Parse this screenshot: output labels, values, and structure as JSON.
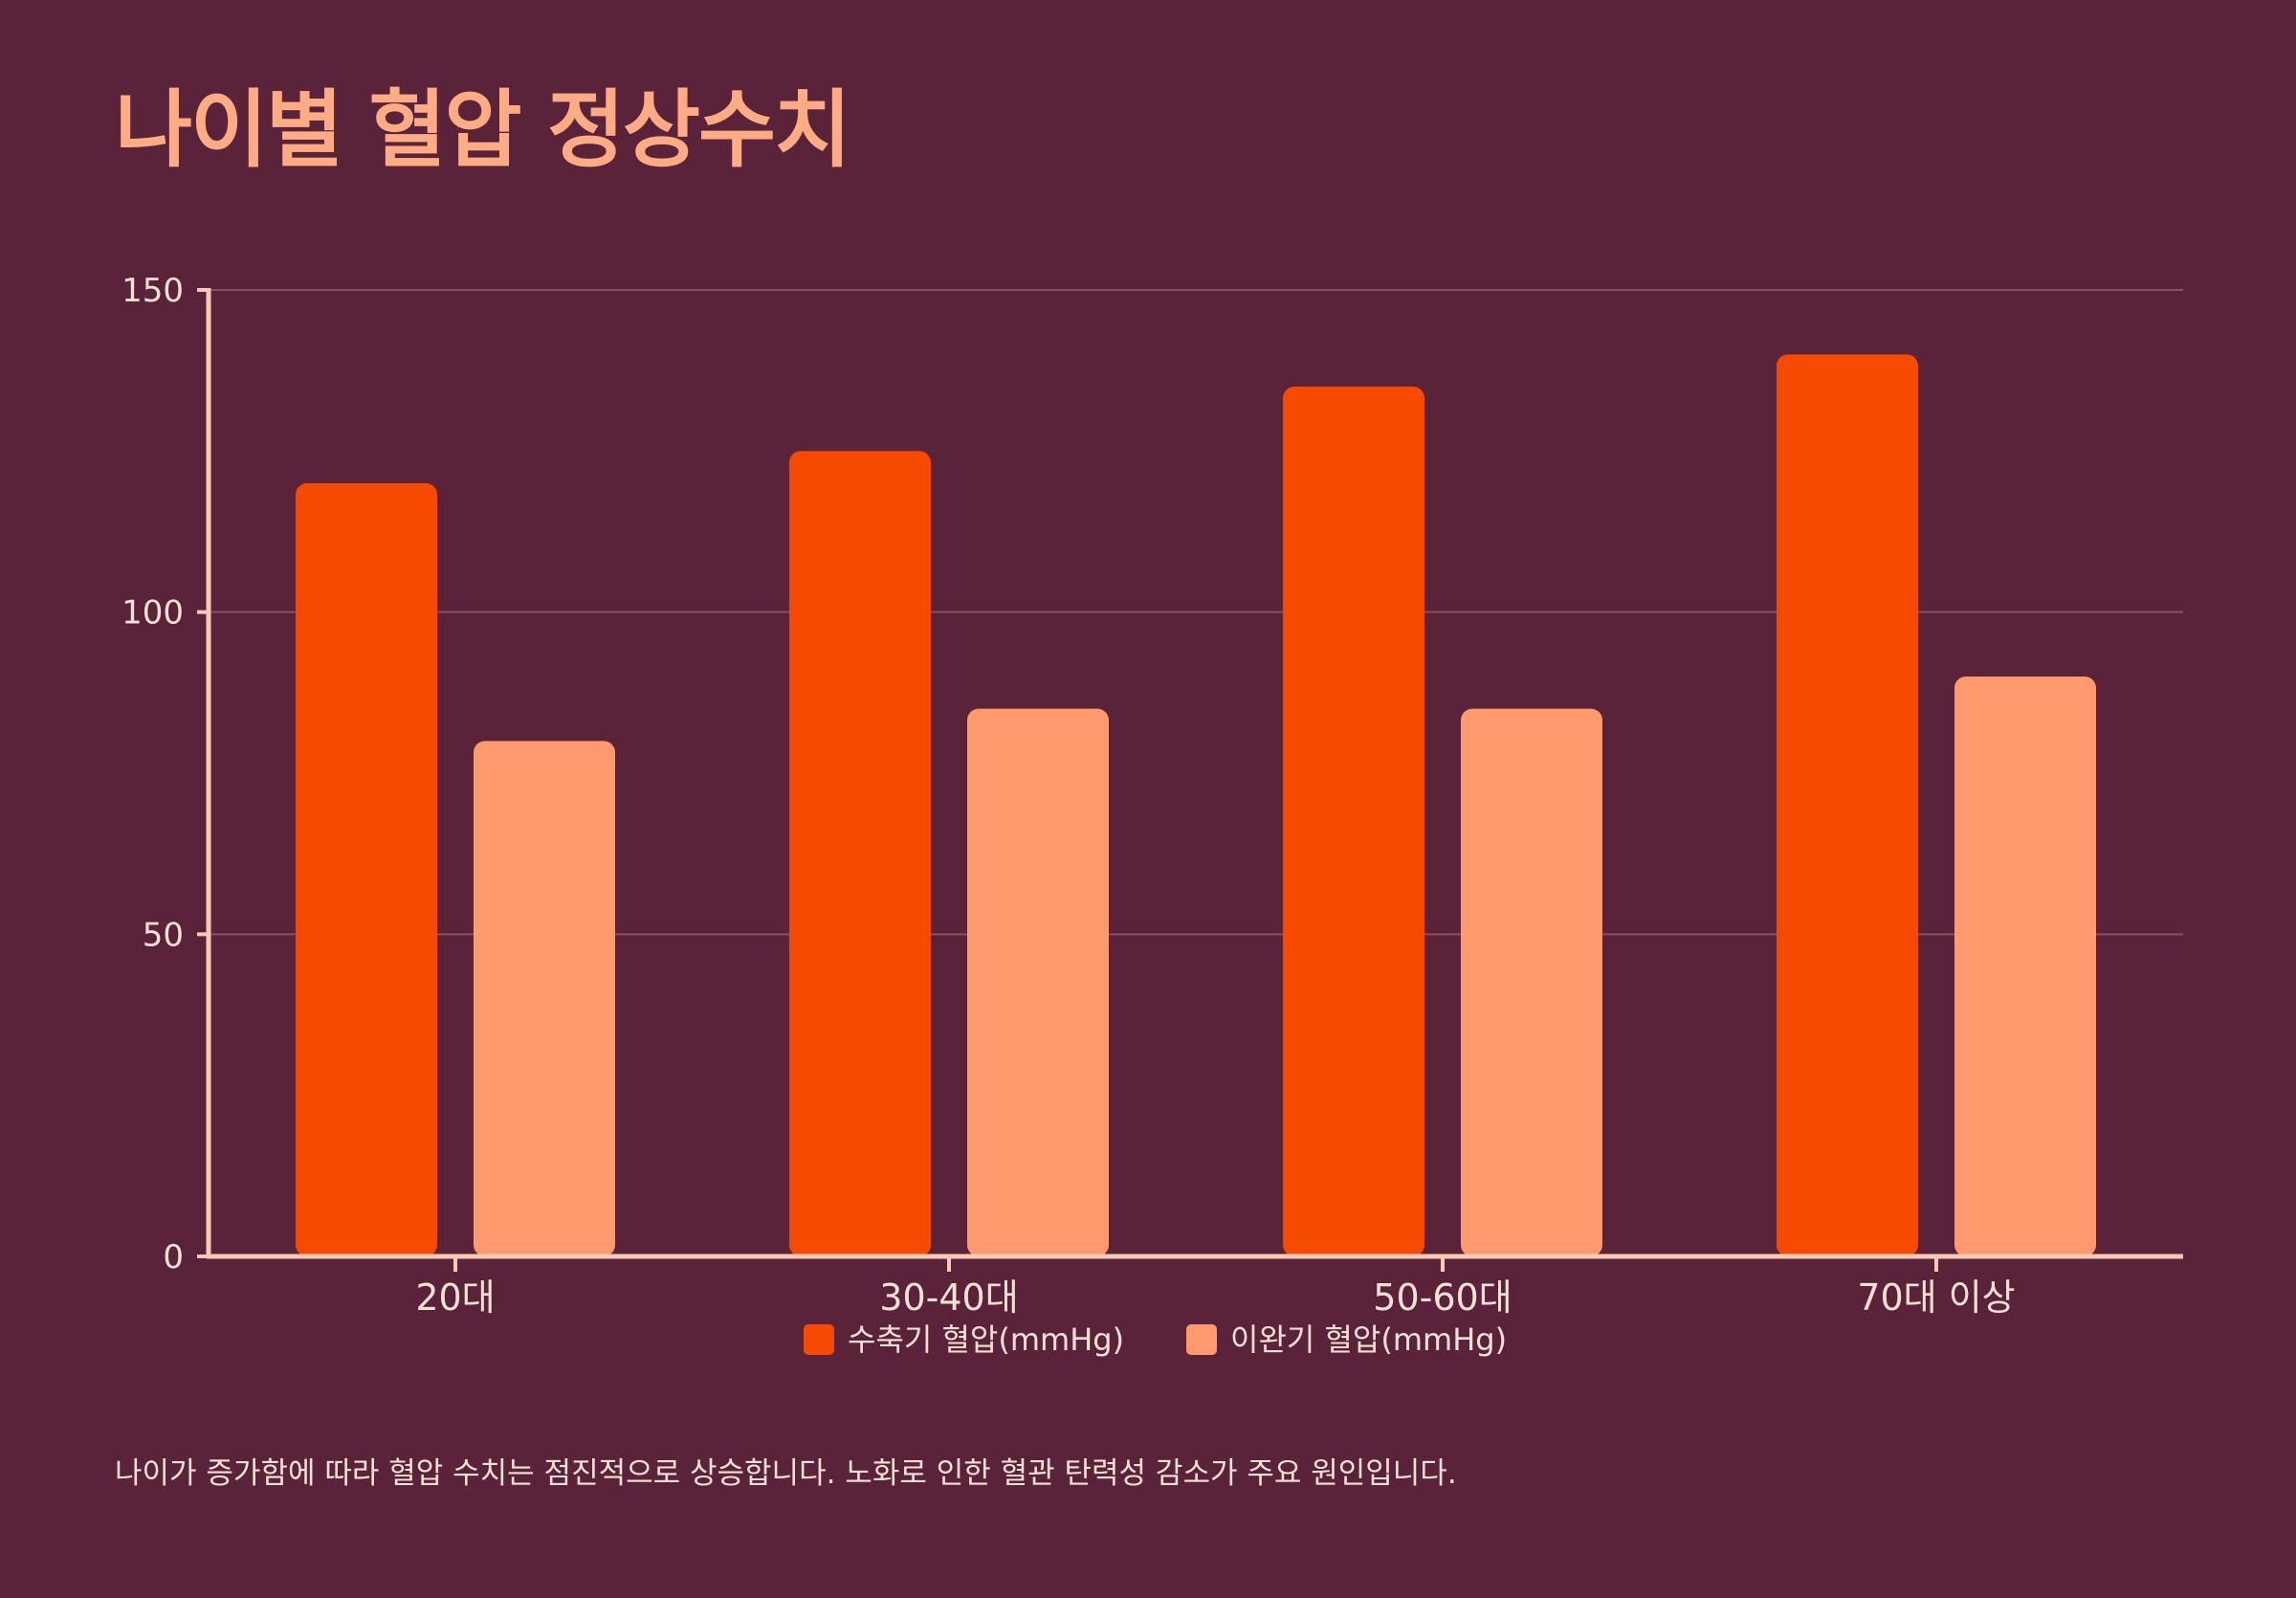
{
  "colors": {
    "background": "#5b233a",
    "title": "#ffab84",
    "text": "#fbe2d4",
    "axis": "#f6cbb5",
    "grid": "#8a4f62",
    "systolic": "#f54a00",
    "diastolic": "#ff9a6e"
  },
  "title": "나이별 혈압 정상수치",
  "footnote": "나이가 증가함에 따라 혈압 수치는 점진적으로 상승합니다. 노화로 인한 혈관 탄력성 감소가 주요 원인입니다.",
  "chart_data": {
    "type": "bar",
    "title": "나이별 혈압 정상수치",
    "xlabel": "",
    "ylabel": "",
    "categories": [
      "20대",
      "30-40대",
      "50-60대",
      "70대 이상"
    ],
    "series": [
      {
        "name": "수축기 혈압(mmHg)",
        "color": "#f54a00",
        "values": [
          120,
          125,
          135,
          140
        ]
      },
      {
        "name": "이완기 혈압(mmHg)",
        "color": "#ff9a6e",
        "values": [
          80,
          85,
          85,
          90
        ]
      }
    ],
    "ylim": [
      0,
      150
    ],
    "yticks": [
      "0",
      "50",
      "100",
      "150"
    ],
    "grid": true,
    "legend": "bottom-center"
  }
}
